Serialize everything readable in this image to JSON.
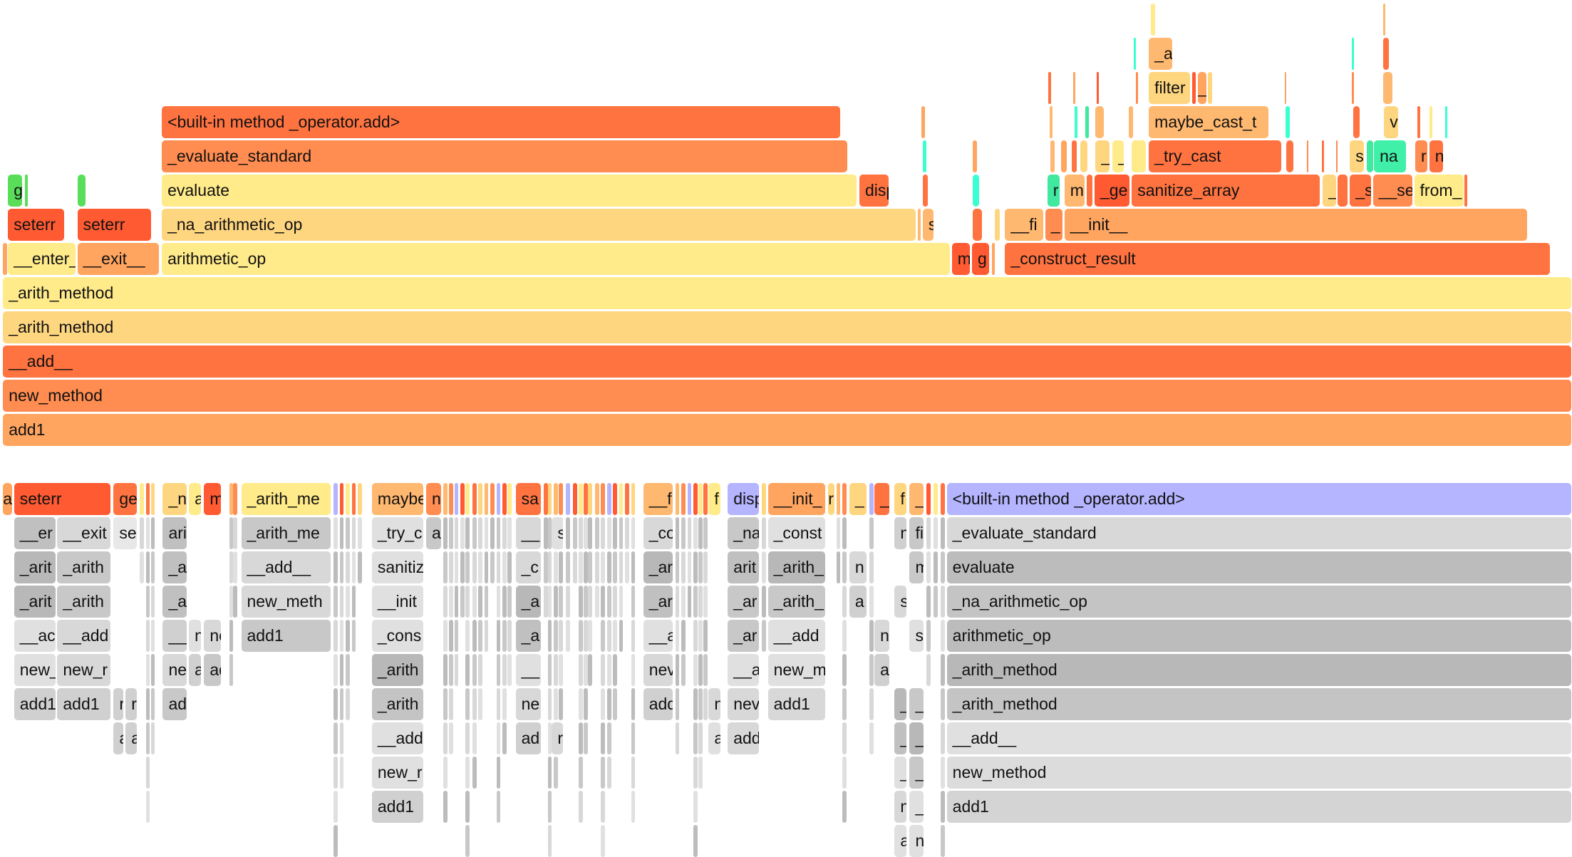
{
  "top_flamegraph": {
    "frames": [
      {
        "label": "add1",
        "color": "#ffa560"
      },
      {
        "label": "new_method",
        "color": "#ff8c50"
      },
      {
        "label": "__add__",
        "color": "#ff7340"
      },
      {
        "label": "_arith_method",
        "color": "#ffd680"
      },
      {
        "label": "_arith_method",
        "color": "#ffeb8a"
      },
      {
        "label": "__enter__",
        "color": "#ffeb8a"
      },
      {
        "label": "__exit__",
        "color": "#ffa560"
      },
      {
        "label": "arithmetic_op",
        "color": "#ffeb8a"
      },
      {
        "label": "m",
        "color": "#ff5a32"
      },
      {
        "label": "g",
        "color": "#ff5a32"
      },
      {
        "label": "_construct_result",
        "color": "#ff7340"
      },
      {
        "label": "seterr",
        "color": "#ff5a32"
      },
      {
        "label": "seterr",
        "color": "#ff5a32"
      },
      {
        "label": "_na_arithmetic_op",
        "color": "#ffd680"
      },
      {
        "label": "s",
        "color": "#ffb870"
      },
      {
        "label": "__fi",
        "color": "#ffb870"
      },
      {
        "label": "_",
        "color": "#ff8c50"
      },
      {
        "label": "__init__",
        "color": "#ffa560"
      },
      {
        "label": "g",
        "color": "#5ade5a"
      },
      {
        "label": "evaluate",
        "color": "#ffeb8a"
      },
      {
        "label": "disp",
        "color": "#ff7340"
      },
      {
        "label": "r",
        "color": "#40e8a0"
      },
      {
        "label": "m",
        "color": "#ffb870"
      },
      {
        "label": "_ge",
        "color": "#ff5a32"
      },
      {
        "label": "sanitize_array",
        "color": "#ff7340"
      },
      {
        "label": "_",
        "color": "#ffd680"
      },
      {
        "label": "_s",
        "color": "#ff7340"
      },
      {
        "label": "__se",
        "color": "#ff8c50"
      },
      {
        "label": "from_",
        "color": "#ffeb8a"
      },
      {
        "label": "_evaluate_standard",
        "color": "#ff8c50"
      },
      {
        "label": "_",
        "color": "#ffd680"
      },
      {
        "label": "_",
        "color": "#ffeb8a"
      },
      {
        "label": "_try_cast",
        "color": "#ff7340"
      },
      {
        "label": "s",
        "color": "#ffd680"
      },
      {
        "label": "na",
        "color": "#40f0a8"
      },
      {
        "label": "r",
        "color": "#ff8c50"
      },
      {
        "label": "n",
        "color": "#ff7340"
      },
      {
        "label": "<built-in method _operator.add>",
        "color": "#ff7340"
      },
      {
        "label": "maybe_cast_t",
        "color": "#ffb870"
      },
      {
        "label": "vi",
        "color": "#ffd680"
      },
      {
        "label": "filter",
        "color": "#ffd680"
      },
      {
        "label": "_",
        "color": "#ffa560"
      },
      {
        "label": "_a",
        "color": "#ffb870"
      }
    ]
  },
  "bottom_flamegraph": {
    "highlight_color": "#b4b4ff",
    "frames": [
      {
        "label": "a",
        "color": "#ffa560"
      },
      {
        "label": "seterr",
        "color": "#ff5a32"
      },
      {
        "label": "ge",
        "color": "#ff7340"
      },
      {
        "label": "_n",
        "color": "#ffd680"
      },
      {
        "label": "a",
        "color": "#ffeb8a"
      },
      {
        "label": "m",
        "color": "#ff5a32"
      },
      {
        "label": "_arith_me",
        "color": "#ffeb8a"
      },
      {
        "label": "maybe",
        "color": "#ffb870"
      },
      {
        "label": "n",
        "color": "#ff8c50"
      },
      {
        "label": "sa",
        "color": "#ff7340"
      },
      {
        "label": "__f",
        "color": "#ffb870"
      },
      {
        "label": "f",
        "color": "#ffeb8a"
      },
      {
        "label": "disp",
        "color": "#b4b4ff"
      },
      {
        "label": "__init_",
        "color": "#ffa560"
      },
      {
        "label": "r",
        "color": "#ffd680"
      },
      {
        "label": "_",
        "color": "#ffd680"
      },
      {
        "label": "_",
        "color": "#ff7340"
      },
      {
        "label": "f",
        "color": "#ffd680"
      },
      {
        "label": "_",
        "color": "#ffb870"
      },
      {
        "label": "<built-in method _operator.add>",
        "color": "#b4b4ff"
      },
      {
        "label": "__er",
        "color": "#c0c0c0"
      },
      {
        "label": "__exit",
        "color": "#d8d8d8"
      },
      {
        "label": "se",
        "color": "#e8e8e8"
      },
      {
        "label": "ari",
        "color": "#c0c0c0"
      },
      {
        "label": "_arith_me",
        "color": "#c8c8c8"
      },
      {
        "label": "_try_c",
        "color": "#e0e0e0"
      },
      {
        "label": "a",
        "color": "#c8c8c8"
      },
      {
        "label": "__",
        "color": "#d8d8d8"
      },
      {
        "label": "s",
        "color": "#e0e0e0"
      },
      {
        "label": "_co",
        "color": "#d8d8d8"
      },
      {
        "label": "_na",
        "color": "#c8c8c8"
      },
      {
        "label": "_const",
        "color": "#e0e0e0"
      },
      {
        "label": "n",
        "color": "#d0d0d0"
      },
      {
        "label": "fi",
        "color": "#c8c8c8"
      },
      {
        "label": "_evaluate_standard",
        "color": "#d8d8d8"
      },
      {
        "label": "_arit",
        "color": "#b8b8b8"
      },
      {
        "label": "_arith",
        "color": "#c8c8c8"
      },
      {
        "label": "_a",
        "color": "#c0c0c0"
      },
      {
        "label": "__add__",
        "color": "#d8d8d8"
      },
      {
        "label": "sanitiz",
        "color": "#e0e0e0"
      },
      {
        "label": "_c",
        "color": "#d8d8d8"
      },
      {
        "label": "_ar",
        "color": "#b8b8b8"
      },
      {
        "label": "arit",
        "color": "#c0c0c0"
      },
      {
        "label": "_arith_",
        "color": "#b8b8b8"
      },
      {
        "label": "n",
        "color": "#d8d8d8"
      },
      {
        "label": "m",
        "color": "#c8c8c8"
      },
      {
        "label": "evaluate",
        "color": "#bcbcbc"
      },
      {
        "label": "_arit",
        "color": "#b8b8b8"
      },
      {
        "label": "_arith",
        "color": "#c8c8c8"
      },
      {
        "label": "_a",
        "color": "#c0c0c0"
      },
      {
        "label": "new_meth",
        "color": "#d8d8d8"
      },
      {
        "label": "__init",
        "color": "#e0e0e0"
      },
      {
        "label": "_a",
        "color": "#b8b8b8"
      },
      {
        "label": "_ar",
        "color": "#c0c0c0"
      },
      {
        "label": "_ar",
        "color": "#c8c8c8"
      },
      {
        "label": "_arith_",
        "color": "#c8c8c8"
      },
      {
        "label": "a",
        "color": "#d0d0d0"
      },
      {
        "label": "s",
        "color": "#d8d8d8"
      },
      {
        "label": "_na_arithmetic_op",
        "color": "#c4c4c4"
      },
      {
        "label": "__ac",
        "color": "#e0e0e0"
      },
      {
        "label": "__add",
        "color": "#d8d8d8"
      },
      {
        "label": "__",
        "color": "#d0d0d0"
      },
      {
        "label": "n",
        "color": "#e0e0e0"
      },
      {
        "label": "ne",
        "color": "#d8d8d8"
      },
      {
        "label": "add1",
        "color": "#c8c8c8"
      },
      {
        "label": "_cons",
        "color": "#e0e0e0"
      },
      {
        "label": "_a",
        "color": "#c0c0c0"
      },
      {
        "label": "__a",
        "color": "#e0e0e0"
      },
      {
        "label": "_ar",
        "color": "#c8c8c8"
      },
      {
        "label": "__add",
        "color": "#e0e0e0"
      },
      {
        "label": "ne",
        "color": "#d8d8d8"
      },
      {
        "label": "s",
        "color": "#e0e0e0"
      },
      {
        "label": "arithmetic_op",
        "color": "#bcbcbc"
      },
      {
        "label": "new_",
        "color": "#e0e0e0"
      },
      {
        "label": "new_r",
        "color": "#d8d8d8"
      },
      {
        "label": "ne",
        "color": "#d8d8d8"
      },
      {
        "label": "a",
        "color": "#d0d0d0"
      },
      {
        "label": "ad",
        "color": "#c8c8c8"
      },
      {
        "label": "_arith",
        "color": "#b8b8b8"
      },
      {
        "label": "__",
        "color": "#e0e0e0"
      },
      {
        "label": "nev",
        "color": "#d8d8d8"
      },
      {
        "label": "__a",
        "color": "#e0e0e0"
      },
      {
        "label": "new_m",
        "color": "#e0e0e0"
      },
      {
        "label": "ad",
        "color": "#d0d0d0"
      },
      {
        "label": "_arith_method",
        "color": "#b8b8b8"
      },
      {
        "label": "add1",
        "color": "#d0d0d0"
      },
      {
        "label": "add1",
        "color": "#d0d0d0"
      },
      {
        "label": "r",
        "color": "#d0d0d0"
      },
      {
        "label": "r",
        "color": "#d0d0d0"
      },
      {
        "label": "ad",
        "color": "#c8c8c8"
      },
      {
        "label": "_arith",
        "color": "#c4c4c4"
      },
      {
        "label": "ne",
        "color": "#d8d8d8"
      },
      {
        "label": "add",
        "color": "#d0d0d0"
      },
      {
        "label": "n",
        "color": "#d8d8d8"
      },
      {
        "label": "nev",
        "color": "#d8d8d8"
      },
      {
        "label": "add1",
        "color": "#d8d8d8"
      },
      {
        "label": "_",
        "color": "#b8b8b8"
      },
      {
        "label": "_",
        "color": "#c8c8c8"
      },
      {
        "label": "_arith_method",
        "color": "#c4c4c4"
      },
      {
        "label": "a",
        "color": "#d0d0d0"
      },
      {
        "label": "a",
        "color": "#d0d0d0"
      },
      {
        "label": "__add",
        "color": "#e0e0e0"
      },
      {
        "label": "ad",
        "color": "#d0d0d0"
      },
      {
        "label": "r",
        "color": "#d8d8d8"
      },
      {
        "label": "a",
        "color": "#e0e0e0"
      },
      {
        "label": "add",
        "color": "#d8d8d8"
      },
      {
        "label": "_",
        "color": "#c0c0c0"
      },
      {
        "label": "_",
        "color": "#b8b8b8"
      },
      {
        "label": "__add__",
        "color": "#e0e0e0"
      },
      {
        "label": "new_r",
        "color": "#e0e0e0"
      },
      {
        "label": "_",
        "color": "#e0e0e0"
      },
      {
        "label": "_",
        "color": "#c8c8c8"
      },
      {
        "label": "new_method",
        "color": "#dcdcdc"
      },
      {
        "label": "add1",
        "color": "#d0d0d0"
      },
      {
        "label": "n",
        "color": "#d8d8d8"
      },
      {
        "label": "_",
        "color": "#e0e0e0"
      },
      {
        "label": "add1",
        "color": "#d4d4d4"
      },
      {
        "label": "a",
        "color": "#e0e0e0"
      },
      {
        "label": "n",
        "color": "#e0e0e0"
      }
    ]
  }
}
